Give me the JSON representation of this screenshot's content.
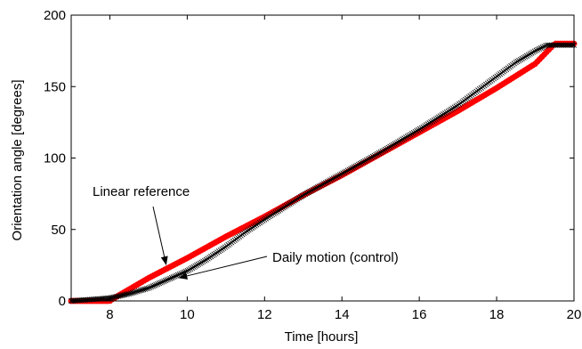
{
  "chart_data": {
    "type": "line",
    "xlabel": "Time [hours]",
    "ylabel": "Orientation angle [degrees]",
    "xlim": [
      7,
      20
    ],
    "ylim": [
      0,
      200
    ],
    "x_ticks": [
      8,
      10,
      12,
      14,
      16,
      18,
      20
    ],
    "y_ticks": [
      0,
      50,
      100,
      150,
      200
    ],
    "grid": false,
    "legend": "none",
    "series": [
      {
        "name": "Linear reference",
        "color": "#ff0000",
        "marker": "filled-dot",
        "x": [
          7.0,
          7.5,
          8.0,
          8.05,
          9.0,
          10.0,
          11.0,
          12.0,
          13.0,
          14.0,
          15.0,
          16.0,
          17.0,
          18.0,
          19.0,
          19.5,
          20.0
        ],
        "y": [
          0,
          0,
          0,
          1,
          16,
          30,
          45,
          59,
          74,
          88,
          103,
          118,
          133,
          149,
          166,
          180,
          180
        ]
      },
      {
        "name": "Daily motion (control)",
        "color": "#000000",
        "marker": "x",
        "x": [
          7.0,
          7.5,
          8.0,
          8.5,
          9.0,
          9.5,
          10.0,
          10.5,
          11.0,
          11.5,
          12.0,
          13.0,
          14.0,
          15.0,
          16.0,
          17.0,
          18.0,
          18.5,
          19.0,
          19.3,
          19.6,
          20.0
        ],
        "y": [
          0,
          1,
          2,
          5,
          9,
          15,
          21,
          29,
          38,
          48,
          57,
          74,
          89,
          104,
          120,
          137,
          157,
          167,
          175,
          179,
          179,
          179
        ]
      }
    ],
    "annotations": [
      {
        "text": "Linear reference",
        "points_to_series": 0,
        "at_x": 9.5
      },
      {
        "text": "Daily motion (control)",
        "points_to_series": 1,
        "at_x": 9.7
      }
    ]
  }
}
